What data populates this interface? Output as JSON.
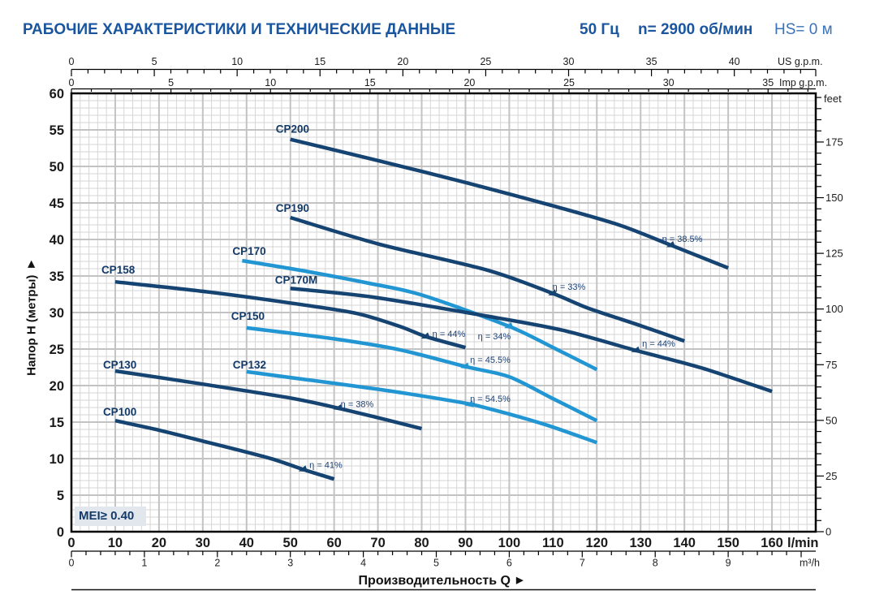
{
  "header": {
    "title": "РАБОЧИЕ ХАРАКТЕРИСТИКИ И ТЕХНИЧЕСКИЕ ДАННЫЕ",
    "frequency": "50 Гц",
    "speed": "n= 2900 об/мин",
    "suction": "HS= 0 м",
    "title_color": "#1a55a0",
    "suction_color": "#3a72b8"
  },
  "chart_data": {
    "type": "line",
    "xlabel": "Производительность Q",
    "ylabel": "Напор H (метры)",
    "mei_label": "MEI≥ 0.40",
    "x_axis": {
      "unit": "l/min",
      "min": 0,
      "max": 170,
      "labels": [
        0,
        10,
        20,
        30,
        40,
        50,
        60,
        70,
        80,
        90,
        100,
        110,
        120,
        130,
        140,
        150,
        160
      ]
    },
    "x_axis_m3h": {
      "unit": "m³/h",
      "labels": [
        0,
        1,
        2,
        3,
        4,
        5,
        6,
        7,
        8,
        9
      ],
      "lmin_per_unit": 16.6667
    },
    "x_axis_us": {
      "unit": "US g.p.m.",
      "labels": [
        0,
        5,
        10,
        15,
        20,
        25,
        30,
        35,
        40
      ],
      "lmin_per_unit": 3.785
    },
    "x_axis_imp": {
      "unit": "Imp g.p.m.",
      "labels": [
        0,
        5,
        10,
        15,
        20,
        25,
        30,
        35
      ],
      "lmin_per_unit": 4.546
    },
    "y_axis": {
      "min": 0,
      "max": 60,
      "labels": [
        0,
        5,
        10,
        15,
        20,
        25,
        30,
        35,
        40,
        45,
        50,
        55,
        60
      ]
    },
    "y_axis_right": {
      "unit": "feet",
      "labels": [
        0,
        25,
        50,
        75,
        100,
        125,
        150,
        175
      ],
      "m_per_unit": 0.3048
    },
    "colors": {
      "dark": "#164472",
      "light": "#2196d3",
      "grid_minor": "#d6d6d6",
      "grid_major": "#c3c3c3",
      "curve_label": "#133a68",
      "eff_label": "#1c4176",
      "axis_text": "#1a1a1a"
    },
    "series": [
      {
        "name": "CP200",
        "color": "dark",
        "points": [
          [
            50,
            53.7
          ],
          [
            70,
            50.8
          ],
          [
            90,
            47.8
          ],
          [
            110,
            44.6
          ],
          [
            125,
            42.0
          ],
          [
            137,
            39.2
          ],
          [
            150,
            36.1
          ]
        ],
        "efficiency": {
          "text": "η = 38.5%",
          "q": 137
        }
      },
      {
        "name": "CP190",
        "color": "dark",
        "points": [
          [
            50,
            43.0
          ],
          [
            70,
            39.4
          ],
          [
            95,
            35.8
          ],
          [
            110,
            32.6
          ],
          [
            118,
            30.6
          ],
          [
            130,
            28.2
          ],
          [
            140,
            26.1
          ]
        ],
        "efficiency": {
          "text": "η = 33%",
          "q": 110
        }
      },
      {
        "name": "CP170",
        "color": "light",
        "points": [
          [
            39,
            37.1
          ],
          [
            54,
            35.6
          ],
          [
            68,
            34.0
          ],
          [
            80,
            32.4
          ],
          [
            100,
            28.1
          ],
          [
            110,
            25.2
          ],
          [
            120,
            22.2
          ]
        ],
        "efficiency": {
          "text": "η = 34%",
          "q": 100
        }
      },
      {
        "name": "CP170M",
        "color": "dark",
        "points": [
          [
            50,
            33.3
          ],
          [
            69,
            32.1
          ],
          [
            95,
            29.5
          ],
          [
            112,
            27.6
          ],
          [
            129,
            24.8
          ],
          [
            144,
            22.4
          ],
          [
            160,
            19.2
          ]
        ],
        "efficiency": {
          "text": "η = 44%",
          "q": 129
        }
      },
      {
        "name": "CP158",
        "color": "dark",
        "points": [
          [
            10,
            34.2
          ],
          [
            30,
            32.9
          ],
          [
            50,
            31.3
          ],
          [
            65,
            29.9
          ],
          [
            75,
            28.1
          ],
          [
            81,
            26.7
          ],
          [
            90,
            25.2
          ]
        ],
        "efficiency": {
          "text": "η = 44%",
          "q": 81
        }
      },
      {
        "name": "CP150",
        "color": "light",
        "points": [
          [
            40,
            27.9
          ],
          [
            60,
            26.4
          ],
          [
            75,
            24.9
          ],
          [
            90,
            22.6
          ],
          [
            100,
            21.2
          ],
          [
            110,
            18.2
          ],
          [
            120,
            15.2
          ]
        ],
        "efficiency": {
          "text": "η = 45.5%",
          "q": 90
        }
      },
      {
        "name": "CP132",
        "color": "light",
        "points": [
          [
            40,
            21.9
          ],
          [
            50,
            21.1
          ],
          [
            70,
            19.5
          ],
          [
            88,
            17.8
          ],
          [
            95,
            16.9
          ],
          [
            108,
            14.7
          ],
          [
            120,
            12.2
          ]
        ],
        "efficiency": {
          "text": "η = 54.5%",
          "q": 91
        }
      },
      {
        "name": "CP130",
        "color": "dark",
        "points": [
          [
            10,
            22.0
          ],
          [
            30,
            20.2
          ],
          [
            50,
            18.3
          ],
          [
            61,
            16.9
          ],
          [
            70,
            15.6
          ],
          [
            80,
            14.1
          ]
        ],
        "efficiency": {
          "text": "η = 38%",
          "q": 61
        }
      },
      {
        "name": "CP100",
        "color": "dark",
        "points": [
          [
            10,
            15.2
          ],
          [
            20,
            13.9
          ],
          [
            30,
            12.4
          ],
          [
            45,
            10.1
          ],
          [
            53,
            8.5
          ],
          [
            60,
            7.2
          ]
        ],
        "efficiency": {
          "text": "η = 41%",
          "q": 53
        }
      }
    ]
  }
}
